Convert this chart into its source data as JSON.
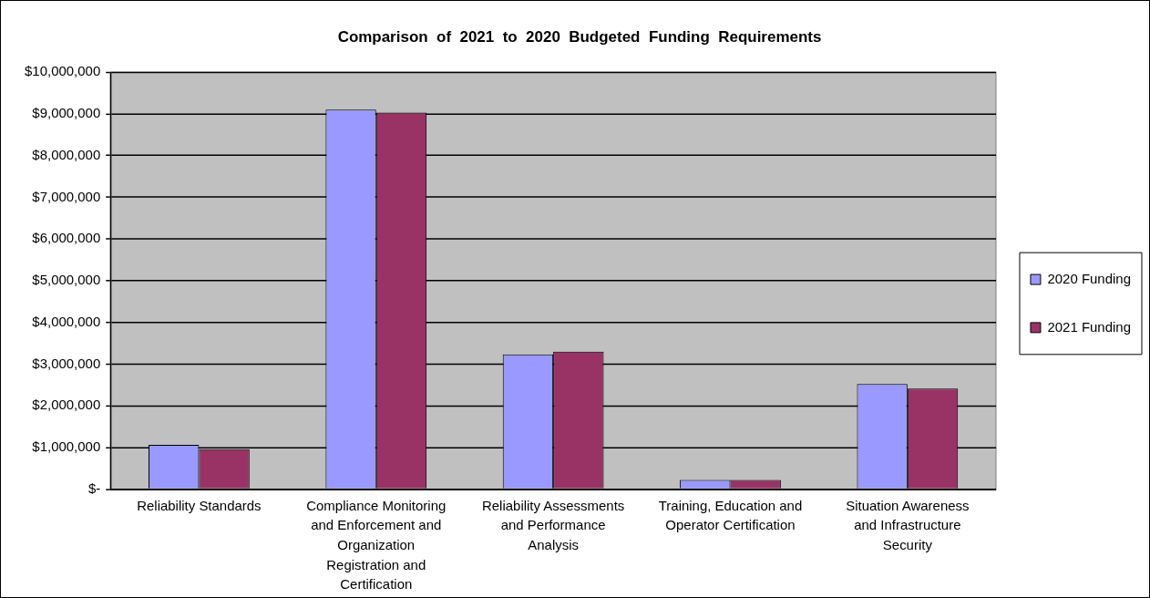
{
  "chart_data": {
    "type": "bar",
    "title": "Comparison  of  2021  to  2020  Budgeted  Funding  Requirements",
    "categories": [
      "Reliability Standards",
      "Compliance Monitoring and Enforcement and Organization Registration and Certification",
      "Reliability Assessments and Performance Analysis",
      "Training, Education and Operator Certification",
      "Situation Awareness and Infrastructure Security"
    ],
    "series": [
      {
        "name": "2020 Funding",
        "color": "#9999ff",
        "values": [
          1060000,
          9100000,
          3230000,
          220000,
          2520000
        ]
      },
      {
        "name": "2021 Funding",
        "color": "#993366",
        "values": [
          960000,
          9030000,
          3300000,
          220000,
          2410000
        ]
      }
    ],
    "ylim": [
      0,
      10000000
    ],
    "yticks": [
      {
        "value": 0,
        "label": "$-"
      },
      {
        "value": 1000000,
        "label": "$1,000,000"
      },
      {
        "value": 2000000,
        "label": "$2,000,000"
      },
      {
        "value": 3000000,
        "label": "$3,000,000"
      },
      {
        "value": 4000000,
        "label": "$4,000,000"
      },
      {
        "value": 5000000,
        "label": "$5,000,000"
      },
      {
        "value": 6000000,
        "label": "$6,000,000"
      },
      {
        "value": 7000000,
        "label": "$7,000,000"
      },
      {
        "value": 8000000,
        "label": "$8,000,000"
      },
      {
        "value": 9000000,
        "label": "$9,000,000"
      },
      {
        "value": 10000000,
        "label": "$10,000,000"
      }
    ],
    "grid": "y",
    "legend": "right"
  }
}
